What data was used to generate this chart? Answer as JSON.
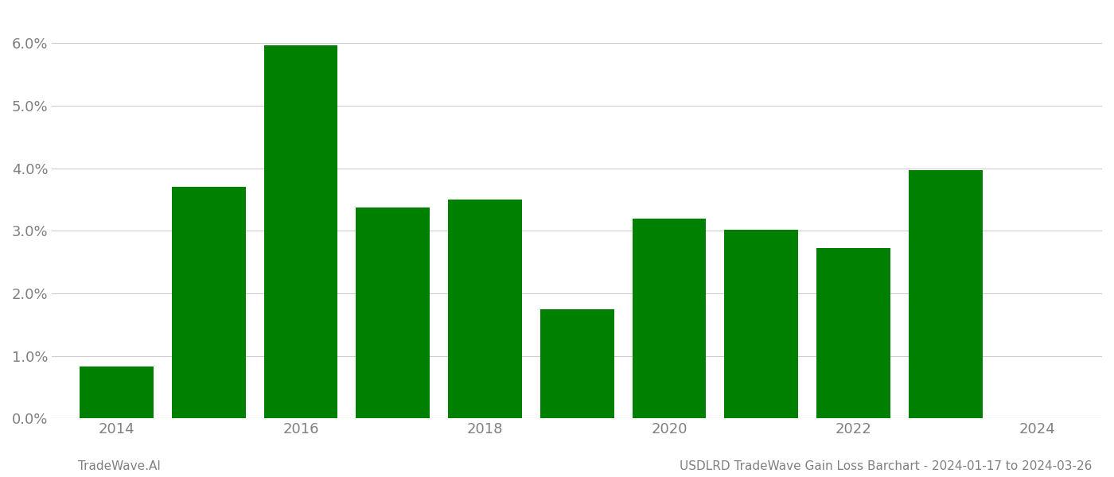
{
  "years": [
    2014,
    2015,
    2016,
    2017,
    2018,
    2019,
    2020,
    2021,
    2022,
    2023
  ],
  "values": [
    0.0083,
    0.037,
    0.0597,
    0.0337,
    0.035,
    0.0175,
    0.032,
    0.0302,
    0.0272,
    0.0397
  ],
  "bar_color": "#008000",
  "background_color": "#ffffff",
  "ylim": [
    0,
    0.065
  ],
  "yticks": [
    0.0,
    0.01,
    0.02,
    0.03,
    0.04,
    0.05,
    0.06
  ],
  "grid_color": "#cccccc",
  "footer_left": "TradeWave.AI",
  "footer_right": "USDLRD TradeWave Gain Loss Barchart - 2024-01-17 to 2024-03-26",
  "footer_color": "#808080",
  "axis_color": "#808080",
  "tick_color": "#808080",
  "footer_fontsize": 11,
  "tick_fontsize": 13,
  "bar_width": 0.8,
  "xlim_left": 2013.3,
  "xlim_right": 2024.7,
  "xticks": [
    2014,
    2016,
    2018,
    2020,
    2022,
    2024
  ]
}
